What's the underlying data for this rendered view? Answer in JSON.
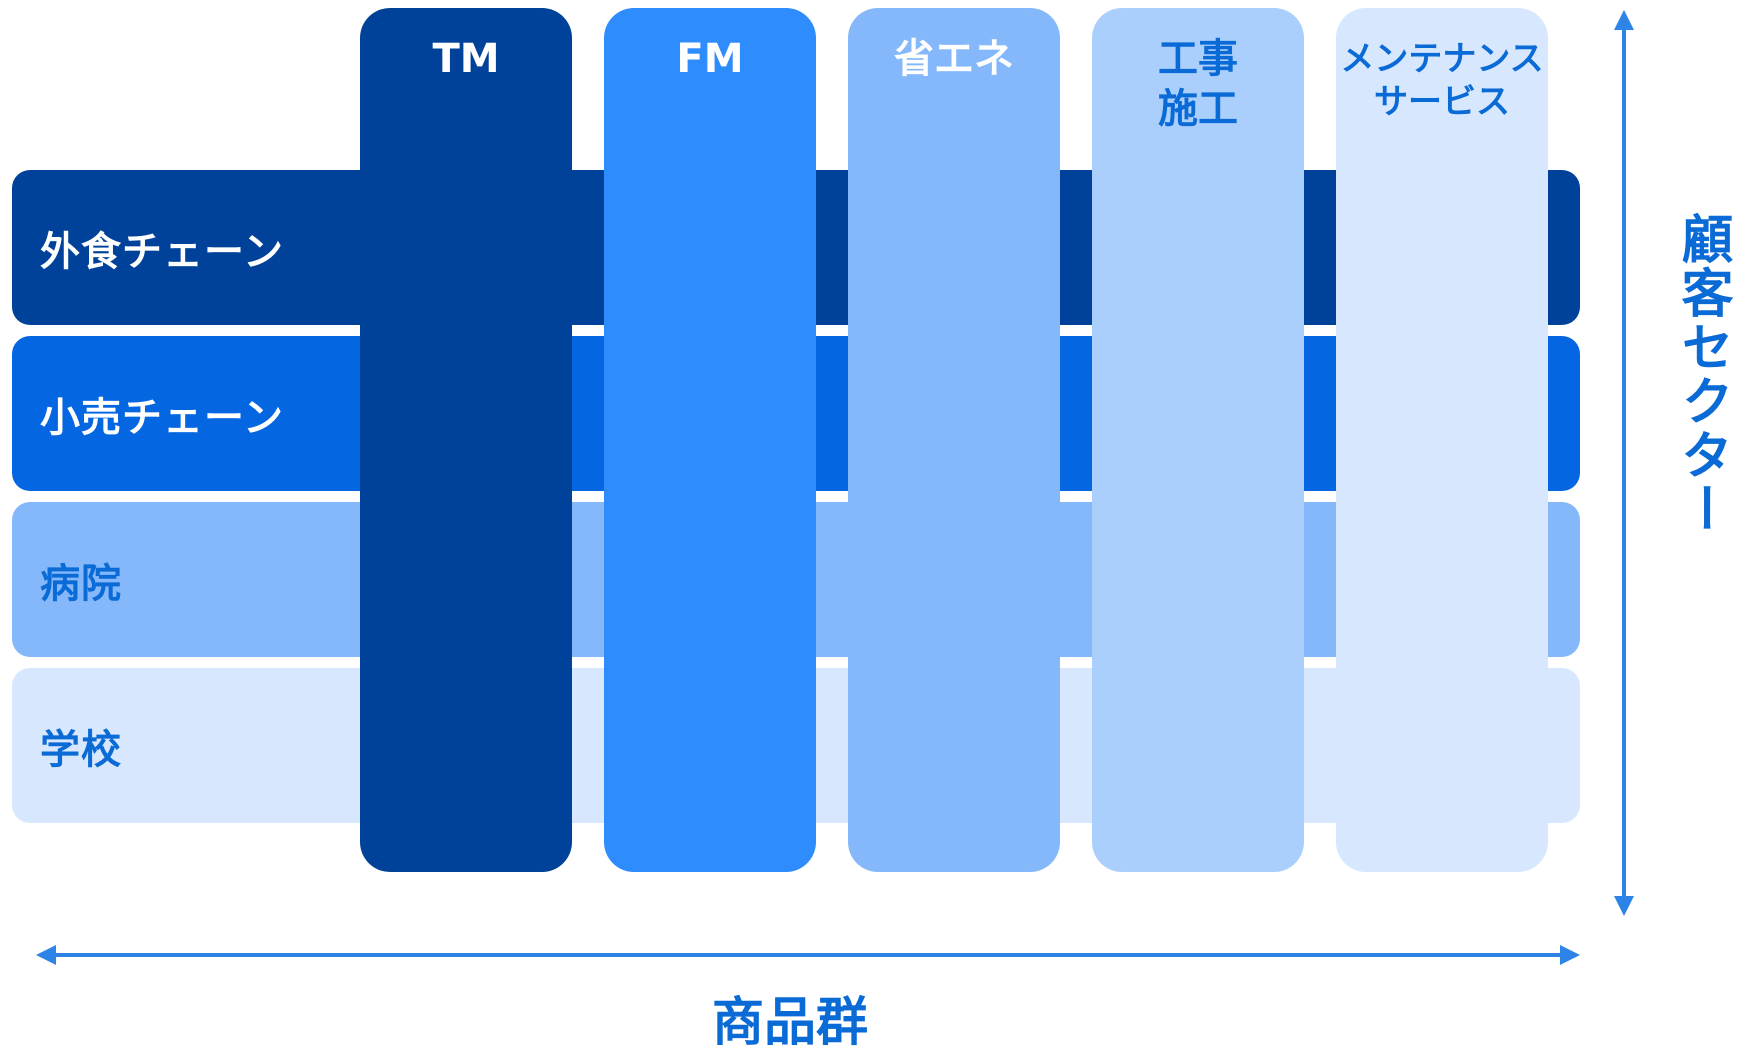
{
  "colors": {
    "dark_navy": "#00429a",
    "bright_blue": "#2f8cfd",
    "mid_blue": "#0566e1",
    "light_blue": "#85b8fb",
    "pale_blue": "#abcffd",
    "paler_blue": "#d6e7fe",
    "text_white": "#ffffff",
    "text_dark_blue": "#0a6ad6",
    "arrow_blue": "#2d84e6"
  },
  "rows": [
    {
      "label": "外食チェーン",
      "color": "#00429a",
      "text_color": "#ffffff"
    },
    {
      "label": "小売チェーン",
      "color": "#0566e1",
      "text_color": "#ffffff"
    },
    {
      "label": "病院",
      "color": "#85b8fb",
      "text_color": "#0a6ad6"
    },
    {
      "label": "学校",
      "color": "#d6e7fe",
      "text_color": "#0a6ad6"
    }
  ],
  "columns": [
    {
      "label": "TM",
      "color": "#00429a",
      "text_color": "#ffffff"
    },
    {
      "label": "FM",
      "color": "#2f8cfd",
      "text_color": "#ffffff"
    },
    {
      "label": "省エネ",
      "color": "#85b8fb",
      "text_color": "#ffffff"
    },
    {
      "label": "工事\n施工",
      "color": "#abcffd",
      "text_color": "#0a6ad6"
    },
    {
      "label": "メンテナンス\nサービス",
      "color": "#d6e7fe",
      "text_color": "#0a6ad6"
    }
  ],
  "axes": {
    "x_label": "商品群",
    "y_label": "顧客セクター"
  }
}
